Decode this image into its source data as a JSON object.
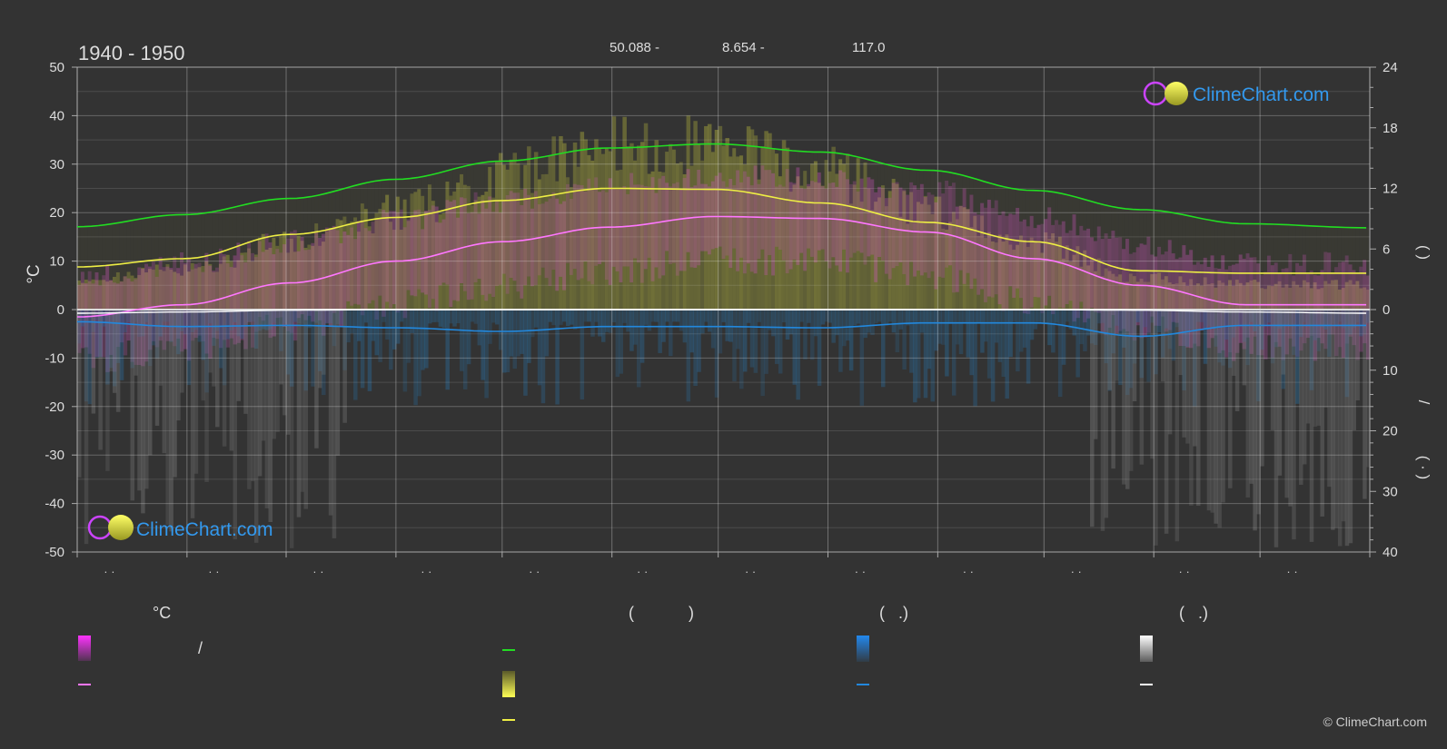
{
  "header": {
    "period": "1940 - 1950",
    "latitude": "50.088 -",
    "longitude": "8.654 -",
    "elevation": "117.0"
  },
  "branding": {
    "logo_text": "ClimeChart.com",
    "copyright": "© ClimeChart.com"
  },
  "colors": {
    "background": "#333333",
    "daylight_line": "#22dd22",
    "sunshine_line": "#eeee44",
    "mean_temp_line": "#ff77ff",
    "precip_line": "#2288dd",
    "snow_line": "#ffffff",
    "logo_blue": "#3399ee"
  },
  "legend": {
    "col1_header": "°C",
    "col1_row1_sep": "/",
    "col2_header": "(            )",
    "col3_header": "(   .)",
    "col4_header": "(   .)"
  },
  "right_axis_text": {
    "top": "(   )",
    "mid": "/",
    "bottom": "(  ·  )"
  },
  "chart_data": {
    "type": "line",
    "title": "1940 - 1950",
    "ylabel": "°C",
    "ylim": [
      -50,
      50
    ],
    "left_ticks": [
      50,
      40,
      30,
      20,
      10,
      0,
      -10,
      -20,
      -30,
      -40,
      -50
    ],
    "right_ticks_hours": [
      24,
      18,
      12,
      6,
      0
    ],
    "right_ticks_precip": [
      10,
      20,
      30,
      40
    ],
    "x_tick_labels": [
      "· ·",
      "· ·",
      "· ·",
      "· ·",
      "· ·",
      "· ·",
      "· ·",
      "· ·",
      "· ·",
      "· ·",
      "· ·",
      "· ·"
    ],
    "x": [
      0,
      30,
      60,
      90,
      120,
      150,
      180,
      210,
      240,
      270,
      300,
      330,
      365
    ],
    "series": [
      {
        "key": "daylight",
        "unit": "hours",
        "values": [
          8.2,
          9.4,
          11.0,
          12.9,
          14.7,
          16.0,
          16.4,
          15.6,
          13.8,
          11.8,
          9.9,
          8.5,
          8.1
        ]
      },
      {
        "key": "sunshine",
        "unit": "°C",
        "values": [
          8.8,
          10.5,
          15.5,
          19.0,
          22.5,
          25.0,
          24.8,
          22.0,
          18.0,
          14.0,
          8.0,
          7.5,
          7.5
        ]
      },
      {
        "key": "mean_temp",
        "unit": "°C",
        "values": [
          -1.5,
          1.0,
          5.5,
          10.0,
          14.0,
          17.0,
          19.2,
          18.8,
          16.0,
          10.5,
          5.0,
          1.0,
          1.0
        ]
      },
      {
        "key": "precip",
        "unit": "mm",
        "values": [
          2.0,
          2.8,
          2.6,
          3.0,
          3.6,
          2.8,
          2.8,
          3.0,
          2.2,
          2.2,
          4.4,
          2.6,
          2.6
        ]
      },
      {
        "key": "snow",
        "unit": "mm",
        "values": [
          0.6,
          0.4,
          0.1,
          0,
          0,
          0,
          0,
          0,
          0,
          0,
          0.1,
          0.4,
          0.6
        ]
      }
    ],
    "grid": true,
    "legend_position": "bottom"
  }
}
